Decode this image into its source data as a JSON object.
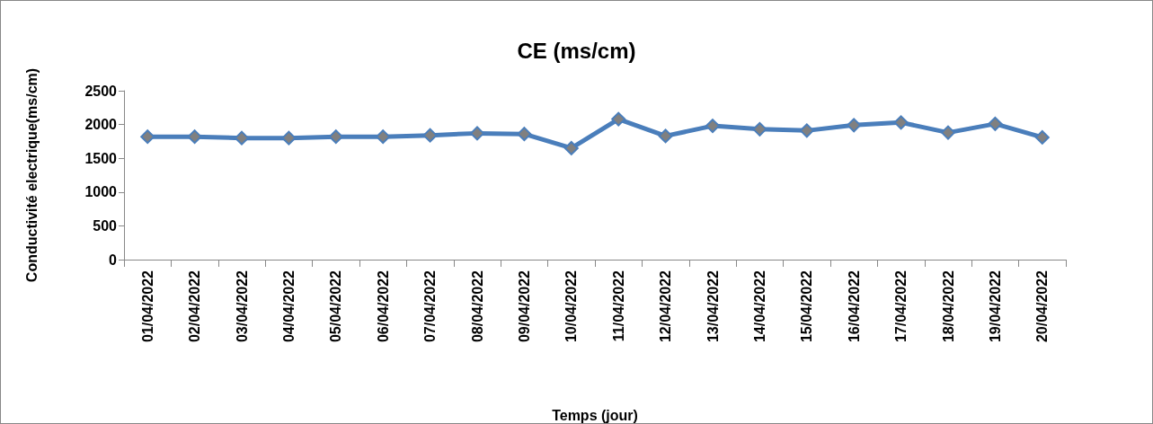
{
  "chart_data": {
    "type": "line",
    "title": "CE (ms/cm)",
    "xlabel": "Temps (jour)",
    "ylabel": "Conductivité electrique(ms/cm)",
    "categories": [
      "01/04/2022",
      "02/04/2022",
      "03/04/2022",
      "04/04/2022",
      "05/04/2022",
      "06/04/2022",
      "07/04/2022",
      "08/04/2022",
      "09/04/2022",
      "10/04/2022",
      "11/04/2022",
      "12/04/2022",
      "13/04/2022",
      "14/04/2022",
      "15/04/2022",
      "16/04/2022",
      "17/04/2022",
      "18/04/2022",
      "19/04/2022",
      "20/04/2022"
    ],
    "series": [
      {
        "color": "#4a7ebb",
        "values": [
          1820,
          1820,
          1800,
          1800,
          1820,
          1820,
          1840,
          1870,
          1860,
          1650,
          2080,
          1830,
          1980,
          1930,
          1910,
          1990,
          2030,
          1880,
          2010,
          1810
        ]
      }
    ],
    "ylim": [
      0,
      2500
    ],
    "yticks": [
      0,
      500,
      1000,
      1500,
      2000,
      2500
    ],
    "grid": false,
    "marker": "diamond",
    "line_style": "solid"
  }
}
